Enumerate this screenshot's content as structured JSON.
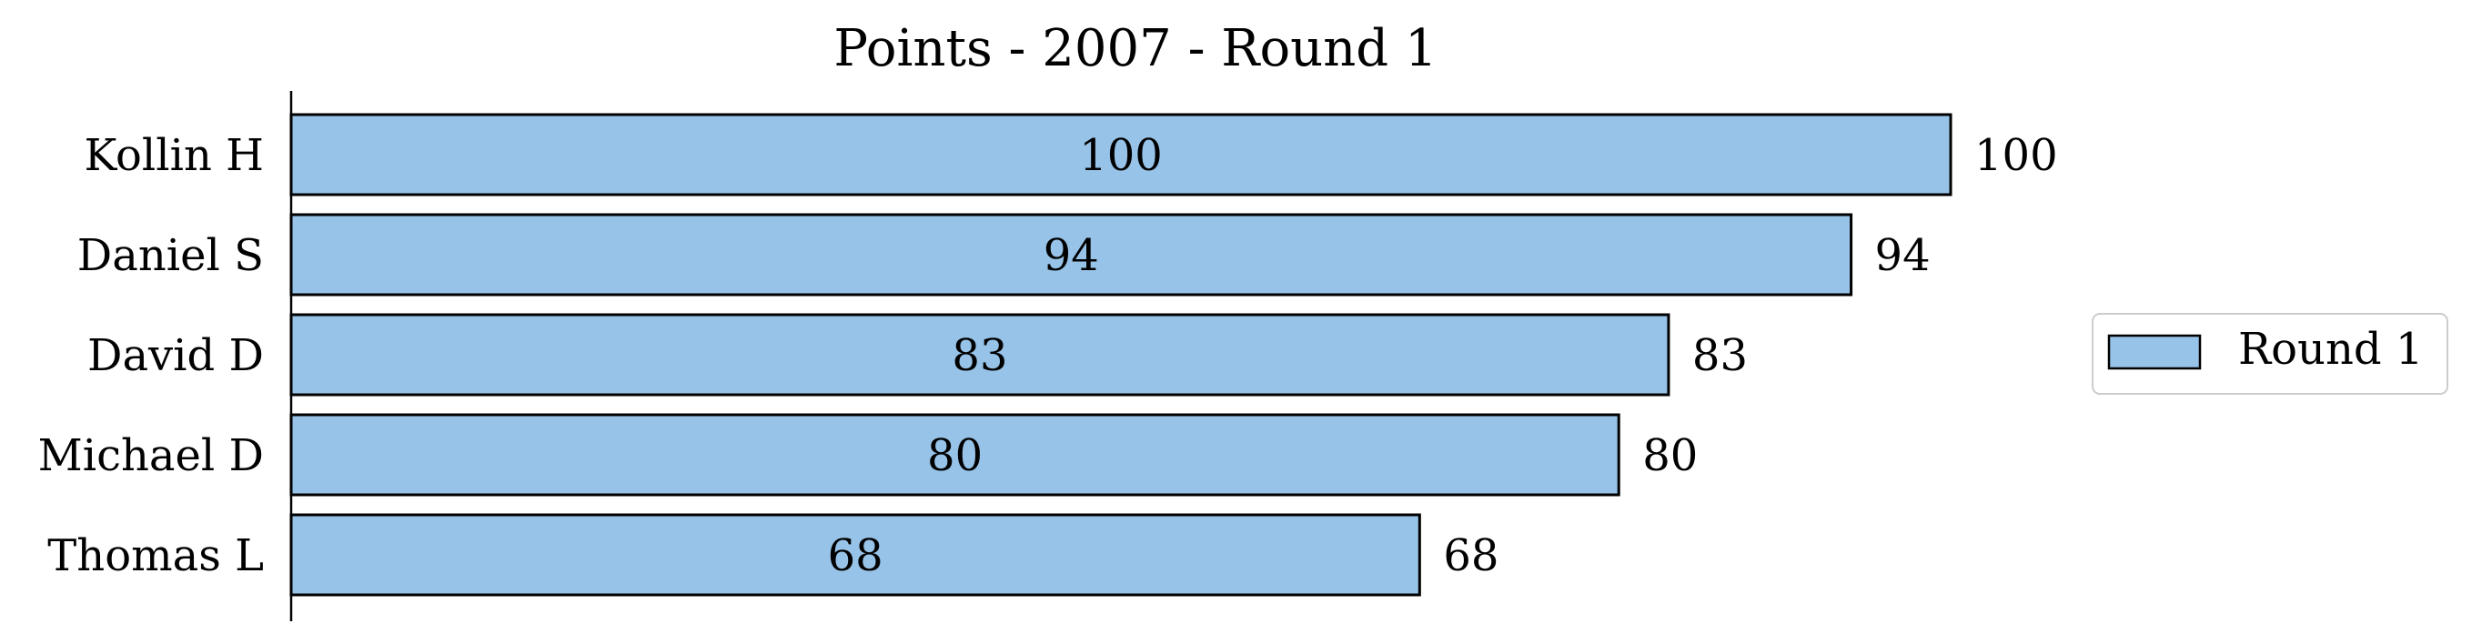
{
  "chart_data": {
    "type": "bar",
    "orientation": "horizontal",
    "title": "Points - 2007 - Round 1",
    "xlabel": "",
    "ylabel": "",
    "categories": [
      "Kollin H",
      "Daniel S",
      "David D",
      "Michael D",
      "Thomas L"
    ],
    "series": [
      {
        "name": "Round 1",
        "values": [
          100,
          94,
          83,
          80,
          68
        ],
        "color": "#97c3e8"
      }
    ],
    "xlim": [
      0,
      100
    ],
    "x_axis_visible": false,
    "grid": false,
    "legend_position": "right",
    "data_labels": [
      "inside-center",
      "outside-end"
    ],
    "bar_edge_color": "#000000"
  }
}
